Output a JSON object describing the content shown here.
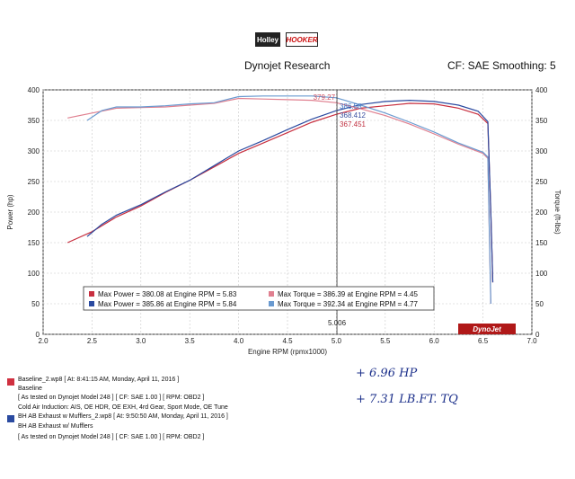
{
  "header": {
    "brand_left": "Holley",
    "brand_right": "HOOKER",
    "title": "Dynojet Research",
    "smoothing": "CF: SAE Smoothing: 5"
  },
  "chart_data": {
    "type": "line",
    "xlabel": "Engine RPM (rpmx1000)",
    "ylabel_left": "Power (hp)",
    "ylabel_right": "Torque (ft-lbs)",
    "xlim": [
      2.0,
      7.0
    ],
    "ylim": [
      0,
      400
    ],
    "x_ticks": [
      "2.0",
      "2.5",
      "3.0",
      "3.5",
      "4.0",
      "4.5",
      "5.0",
      "5.5",
      "6.0",
      "6.5",
      "7.0"
    ],
    "y_ticks": [
      "0",
      "50",
      "100",
      "150",
      "200",
      "250",
      "300",
      "350",
      "400"
    ],
    "grid": true,
    "cursor_rpm": 5.006,
    "cursor_label": "5.006",
    "cursor_values": [
      {
        "text": "379.27",
        "color": "#d05060"
      },
      {
        "text": "386.58",
        "color": "#3a6fc0"
      },
      {
        "text": "368.412",
        "color": "#3a50a0"
      },
      {
        "text": "367.451",
        "color": "#c03040"
      }
    ],
    "series": [
      {
        "color": "#c83040",
        "kind": "power",
        "x": [
          2.25,
          2.5,
          2.75,
          3.0,
          3.25,
          3.5,
          3.75,
          4.0,
          4.25,
          4.5,
          4.75,
          5.0,
          5.25,
          5.5,
          5.75,
          6.0,
          6.25,
          6.45,
          6.55,
          6.58,
          6.6
        ],
        "y": [
          150,
          168,
          192,
          210,
          232,
          252,
          274,
          296,
          313,
          330,
          347,
          360,
          370,
          374,
          378,
          377,
          370,
          360,
          345,
          200,
          85
        ]
      },
      {
        "color": "#2a4aa0",
        "kind": "power",
        "x": [
          2.45,
          2.6,
          2.75,
          3.0,
          3.25,
          3.5,
          3.75,
          4.0,
          4.25,
          4.5,
          4.75,
          5.0,
          5.25,
          5.5,
          5.75,
          6.0,
          6.25,
          6.45,
          6.55,
          6.58,
          6.6
        ],
        "y": [
          160,
          180,
          195,
          212,
          233,
          252,
          276,
          300,
          317,
          335,
          352,
          366,
          376,
          381,
          383,
          381,
          375,
          365,
          348,
          200,
          85
        ]
      },
      {
        "color": "#e08090",
        "kind": "torque",
        "x": [
          2.25,
          2.5,
          2.75,
          3.0,
          3.25,
          3.5,
          3.75,
          4.0,
          4.25,
          4.5,
          4.75,
          5.0,
          5.25,
          5.5,
          5.75,
          6.0,
          6.25,
          6.5,
          6.55,
          6.58
        ],
        "y": [
          354,
          362,
          370,
          371,
          372,
          375,
          378,
          386,
          385,
          384,
          383,
          379,
          369,
          358,
          344,
          328,
          311,
          296,
          288,
          50
        ]
      },
      {
        "color": "#6a9ad0",
        "kind": "torque",
        "x": [
          2.45,
          2.6,
          2.75,
          3.0,
          3.25,
          3.5,
          3.75,
          4.0,
          4.25,
          4.5,
          4.75,
          5.0,
          5.25,
          5.5,
          5.75,
          6.0,
          6.25,
          6.5,
          6.55,
          6.58
        ],
        "y": [
          350,
          366,
          372,
          372,
          374,
          377,
          379,
          389,
          390,
          390,
          390,
          387,
          375,
          362,
          347,
          331,
          313,
          298,
          290,
          50
        ]
      }
    ],
    "legend": [
      {
        "color": "#c83040",
        "text": "Max Power = 380.08 at Engine RPM = 5.83"
      },
      {
        "color": "#2a4aa0",
        "text": "Max Power = 385.86 at Engine RPM = 5.84"
      },
      {
        "color": "#e08090",
        "text": "Max Torque = 386.39 at Engine RPM = 4.45"
      },
      {
        "color": "#6a9ad0",
        "text": "Max Torque = 392.34 at Engine RPM = 4.77"
      }
    ],
    "watermark": "DynoJet"
  },
  "footer": {
    "line1": "Baseline_2.wp8 [ At: 8:41:15 AM, Monday, April 11, 2016 ]",
    "line2": "Baseline",
    "line3": "[ As tested on Dynojet Model 248 ]  [ CF: SAE 1.00 ]  [ RPM: OBD2 ]",
    "line4": "Cold Air Induction: AIS, OE HDR, OE EXH, 4rd Gear, Sport Mode, OE Tune",
    "line5": "BH AB Exhaust w Mufflers_2.wp8 [ At: 9:50:50 AM, Monday, April 11, 2016 ]",
    "line6": "BH AB Exhaust w/ Mufflers",
    "line7": "[ As tested on Dynojet Model 248 ]  [ CF: SAE 1.00 ]  [ RPM: OBD2 ]",
    "swatch1": "#d03040",
    "swatch2": "#2a4aa0"
  },
  "notes": {
    "hp": "+ 6.96 HP",
    "tq": "+ 7.31 LB.FT. TQ"
  }
}
